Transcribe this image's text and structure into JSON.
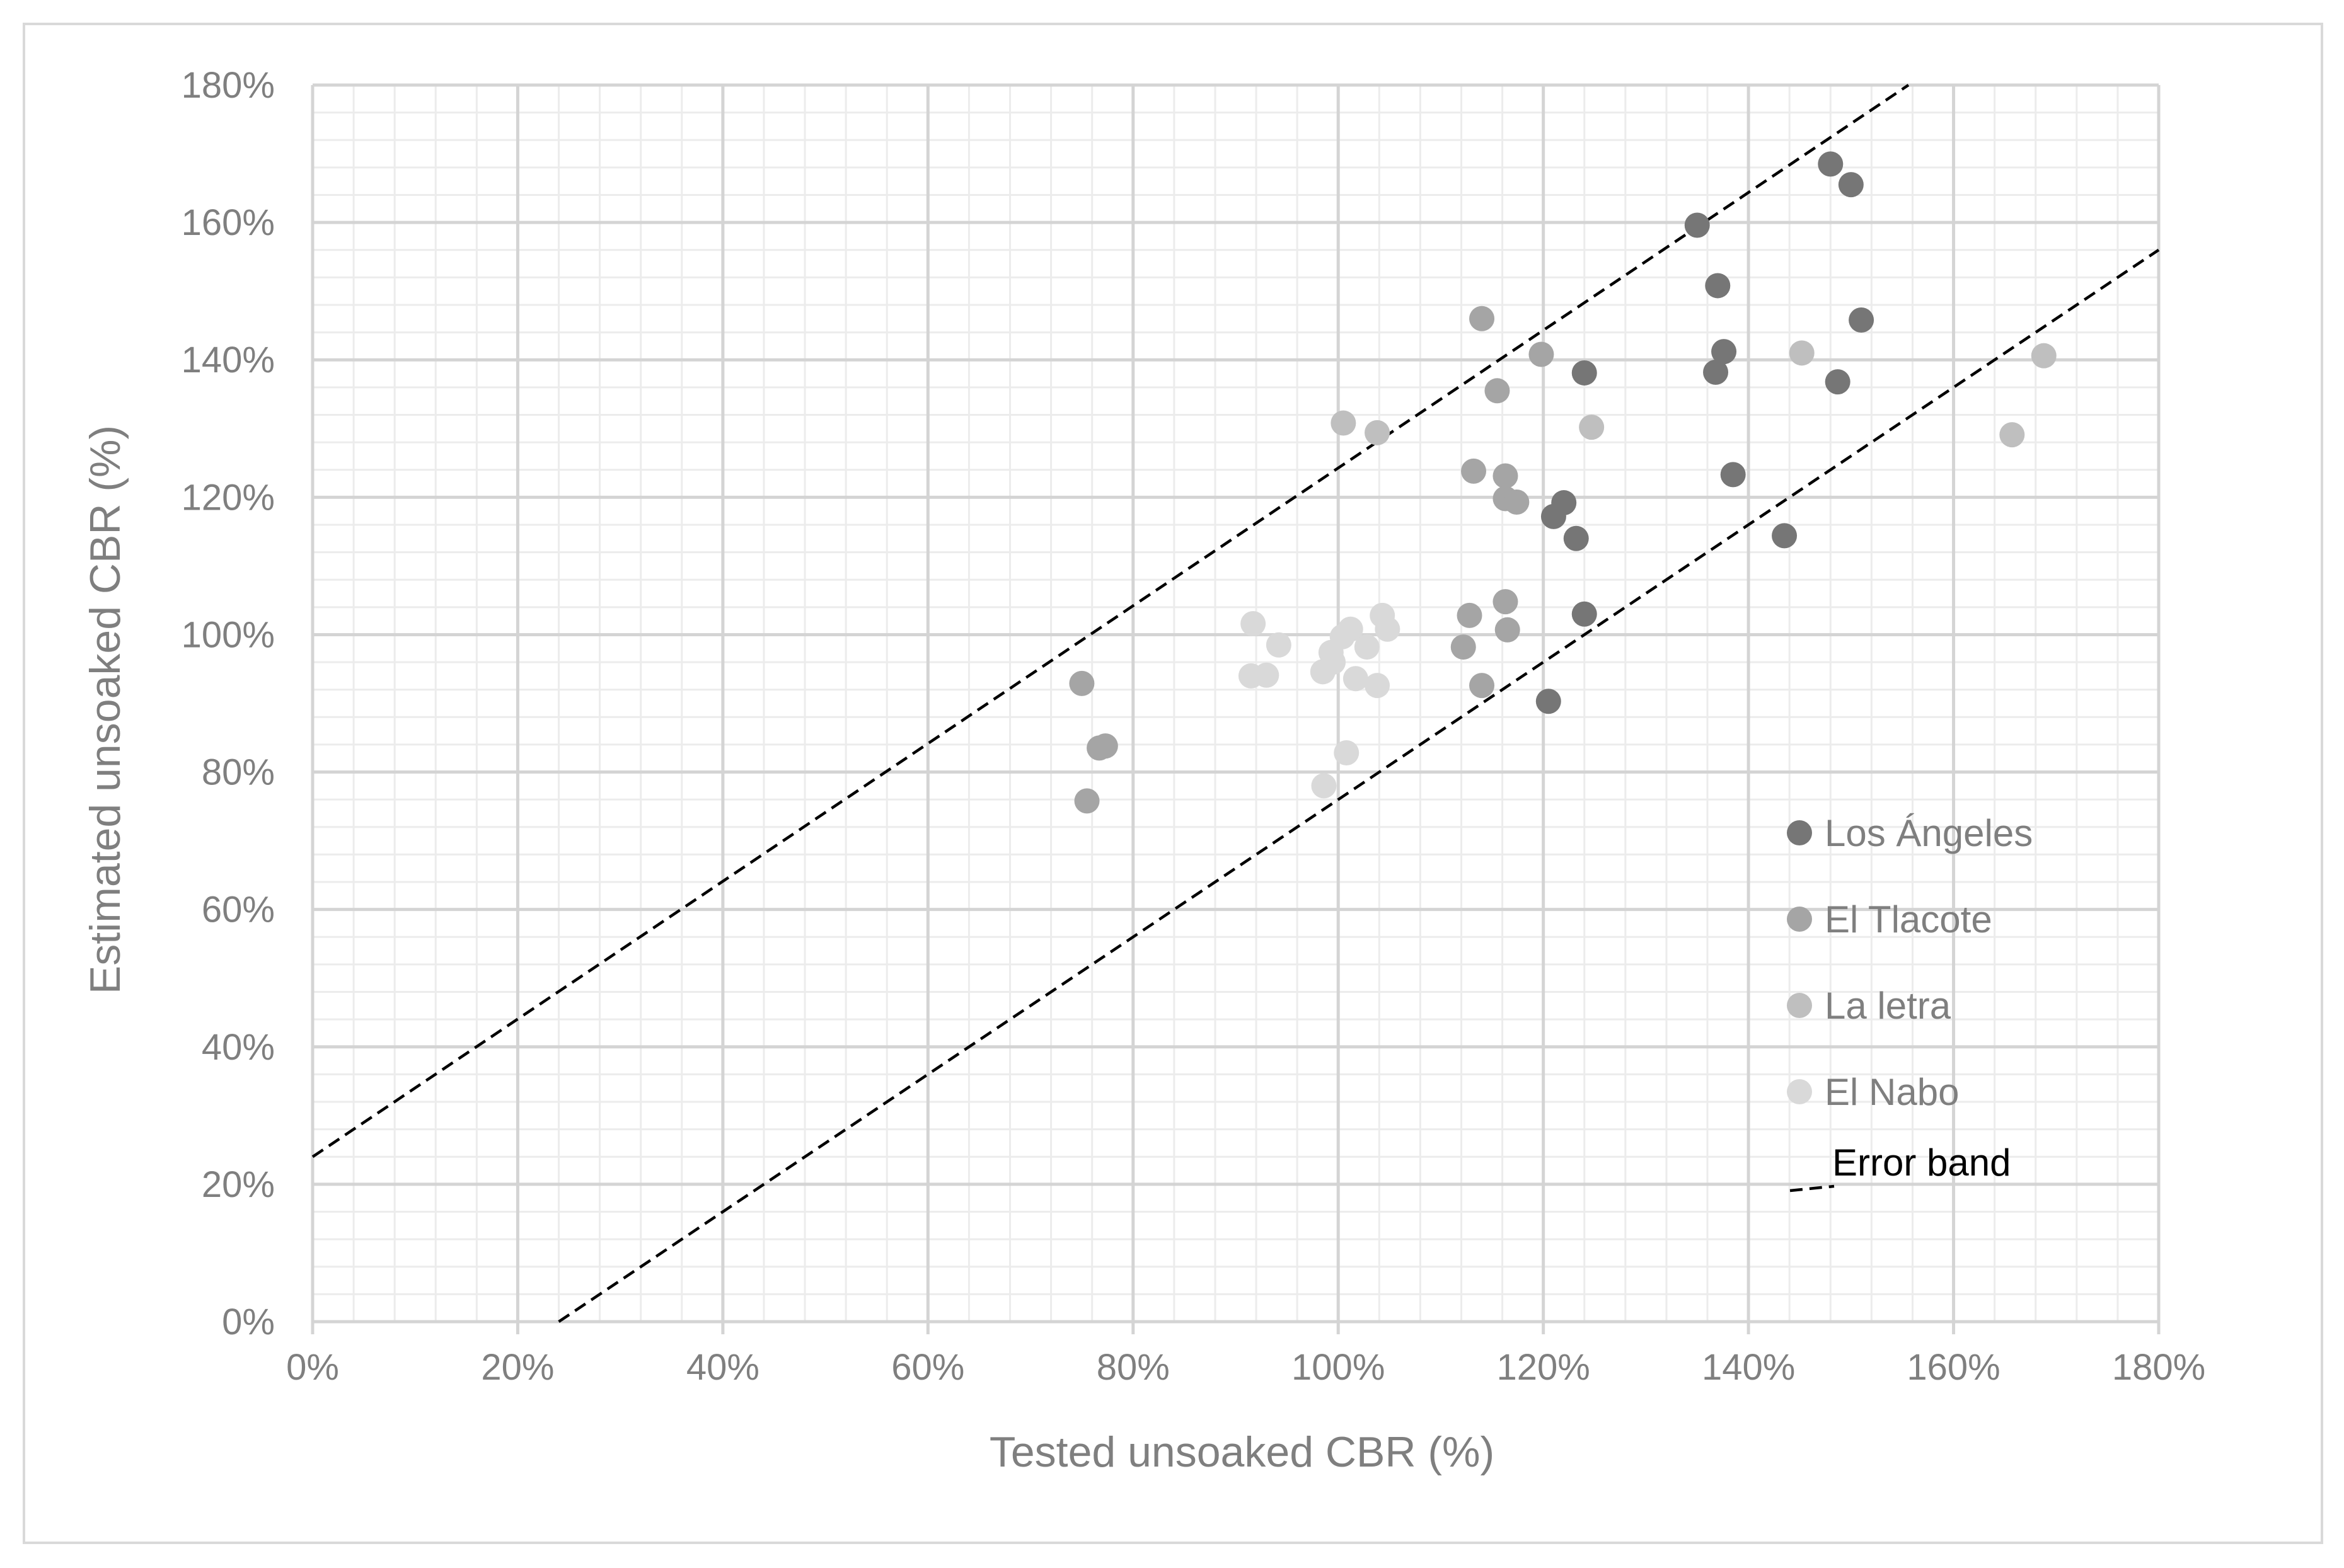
{
  "chart_data": {
    "type": "scatter",
    "title": "",
    "xlabel": "Tested unsoaked CBR (%)",
    "ylabel": "Estimated unsoaked CBR (%)",
    "xlim": [
      0,
      180
    ],
    "ylim": [
      0,
      180
    ],
    "x_ticks": [
      "0%",
      "20%",
      "40%",
      "60%",
      "80%",
      "100%",
      "120%",
      "140%",
      "160%",
      "180%"
    ],
    "y_ticks": [
      "0%",
      "20%",
      "40%",
      "60%",
      "80%",
      "100%",
      "120%",
      "140%",
      "160%",
      "180%"
    ],
    "major_grid_step": 20,
    "minor_grid_step": 4,
    "grid": true,
    "legend_position": "right",
    "series": [
      {
        "name": "Los Ángeles",
        "color": "#767676",
        "points": [
          [
            135,
            159.6
          ],
          [
            148,
            168.5
          ],
          [
            150,
            165.5
          ],
          [
            137,
            150.8
          ],
          [
            151,
            145.8
          ],
          [
            137.6,
            141.2
          ],
          [
            136.8,
            138.2
          ],
          [
            124,
            138.1
          ],
          [
            148.7,
            136.8
          ],
          [
            138.5,
            123.3
          ],
          [
            122,
            119.2
          ],
          [
            121,
            117.2
          ],
          [
            123.2,
            114
          ],
          [
            143.5,
            114.4
          ],
          [
            124,
            103
          ],
          [
            120.5,
            90.3
          ]
        ]
      },
      {
        "name": "El Tlacote",
        "color": "#a5a5a5",
        "points": [
          [
            114,
            146
          ],
          [
            119.8,
            140.8
          ],
          [
            115.5,
            135.5
          ],
          [
            113.2,
            123.8
          ],
          [
            116.3,
            123.1
          ],
          [
            116.3,
            119.8
          ],
          [
            117.4,
            119.3
          ],
          [
            112.8,
            102.8
          ],
          [
            116.3,
            104.8
          ],
          [
            116.5,
            100.7
          ],
          [
            112.2,
            98.2
          ],
          [
            114,
            92.6
          ],
          [
            75,
            92.9
          ],
          [
            76.7,
            83.5
          ],
          [
            77.3,
            83.8
          ],
          [
            75.5,
            75.8
          ]
        ]
      },
      {
        "name": "La letra",
        "color": "#bfbfbf",
        "points": [
          [
            100.5,
            130.8
          ],
          [
            103.8,
            129.4
          ],
          [
            145.2,
            141
          ],
          [
            124.7,
            130.2
          ],
          [
            168.8,
            140.6
          ],
          [
            165.7,
            129.1
          ]
        ]
      },
      {
        "name": "El Nabo",
        "color": "#d9d9d9",
        "points": [
          [
            91.7,
            101.6
          ],
          [
            94.2,
            98.5
          ],
          [
            91.5,
            94
          ],
          [
            93,
            94.1
          ],
          [
            98.5,
            94.6
          ],
          [
            99.3,
            97.4
          ],
          [
            99.5,
            96
          ],
          [
            100.4,
            99.7
          ],
          [
            101.2,
            100.8
          ],
          [
            102.8,
            98.2
          ],
          [
            104.3,
            102.8
          ],
          [
            104.8,
            100.8
          ],
          [
            101.7,
            93.6
          ],
          [
            103.8,
            92.6
          ],
          [
            100.8,
            82.8
          ],
          [
            98.6,
            78
          ]
        ]
      }
    ],
    "lines": [
      {
        "name": "Error band",
        "style": "dashed",
        "color": "#000000",
        "points": [
          [
            0,
            24
          ],
          [
            155.6,
            180
          ]
        ]
      },
      {
        "name": "Error band",
        "style": "dashed",
        "color": "#000000",
        "points": [
          [
            24,
            0
          ],
          [
            180,
            156
          ]
        ]
      }
    ]
  }
}
